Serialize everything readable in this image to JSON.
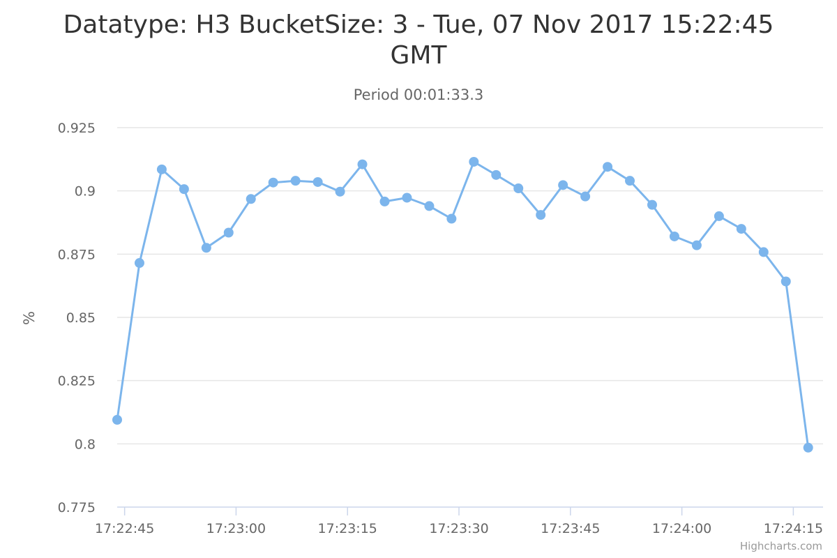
{
  "chart_data": {
    "type": "line",
    "title": "Datatype: H3 BucketSize: 3 - Tue, 07 Nov 2017 15:22:45 GMT",
    "subtitle": "Period 00:01:33.3",
    "xlabel": "",
    "ylabel": "%",
    "ylim": [
      0.775,
      0.925
    ],
    "yticks": [
      "0.775",
      "0.8",
      "0.825",
      "0.85",
      "0.875",
      "0.9",
      "0.925"
    ],
    "xlim": [
      "17:22:44",
      "17:24:19"
    ],
    "xticks": [
      "17:22:45",
      "17:23:00",
      "17:23:15",
      "17:23:30",
      "17:23:45",
      "17:24:00",
      "17:24:15"
    ],
    "grid": true,
    "legend": false,
    "color": "#7cb5ec",
    "series": [
      {
        "x": [
          "17:22:44",
          "17:22:47",
          "17:22:50",
          "17:22:53",
          "17:22:56",
          "17:22:59",
          "17:23:02",
          "17:23:05",
          "17:23:08",
          "17:23:11",
          "17:23:14",
          "17:23:17",
          "17:23:20",
          "17:23:23",
          "17:23:26",
          "17:23:29",
          "17:23:32",
          "17:23:35",
          "17:23:38",
          "17:23:41",
          "17:23:44",
          "17:23:47",
          "17:23:50",
          "17:23:53",
          "17:23:56",
          "17:23:59",
          "17:24:02",
          "17:24:05",
          "17:24:08",
          "17:24:11",
          "17:24:14",
          "17:24:17"
        ],
        "values": [
          0.8095,
          0.8715,
          0.9085,
          0.9007,
          0.8775,
          0.8835,
          0.8968,
          0.9033,
          0.904,
          0.9035,
          0.8997,
          0.9105,
          0.8958,
          0.8973,
          0.894,
          0.889,
          0.9115,
          0.9063,
          0.901,
          0.8905,
          0.9023,
          0.8978,
          0.9095,
          0.904,
          0.8945,
          0.882,
          0.8785,
          0.89,
          0.885,
          0.8758,
          0.8642,
          0.7985
        ]
      }
    ]
  },
  "credits": "Highcharts.com"
}
